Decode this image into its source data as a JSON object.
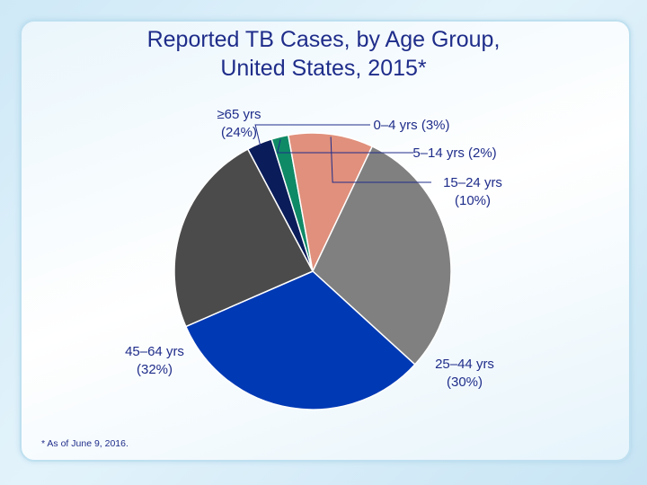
{
  "chart_data": {
    "type": "pie",
    "title_lines": [
      "Reported TB Cases, by Age Group,",
      "United States, 2015*"
    ],
    "slices": [
      {
        "name": "0–4 yrs",
        "value": 3,
        "color": "#0a1d5a",
        "label_lines": [
          "0–4 yrs (3%)"
        ]
      },
      {
        "name": "5–14 yrs",
        "value": 2,
        "color": "#0f8a66",
        "label_lines": [
          "5–14 yrs (2%)"
        ]
      },
      {
        "name": "15–24 yrs",
        "value": 10,
        "color": "#e0907c",
        "label_lines": [
          "15–24 yrs",
          "(10%)"
        ]
      },
      {
        "name": "25–44 yrs",
        "value": 30,
        "color": "#808080",
        "label_lines": [
          "25–44 yrs",
          "(30%)"
        ]
      },
      {
        "name": "45–64 yrs",
        "value": 32,
        "color": "#0039b4",
        "label_lines": [
          "45–64 yrs",
          "(32%)"
        ]
      },
      {
        "name": "≥65 yrs",
        "value": 24,
        "color": "#4b4b4b",
        "label_lines": [
          "≥65 yrs",
          "(24%)"
        ]
      }
    ],
    "footnote": "* As of June 9, 2016."
  }
}
